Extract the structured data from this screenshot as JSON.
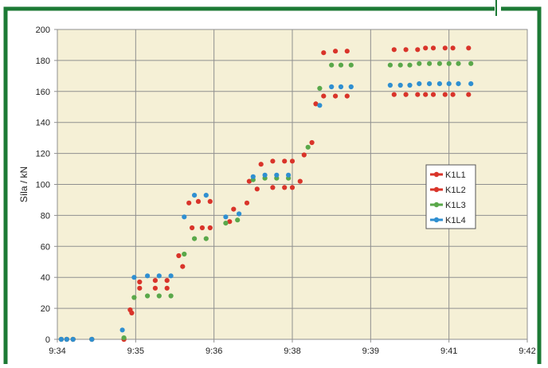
{
  "chart_data": {
    "type": "scatter",
    "title": "",
    "ylabel": "Síla / kN",
    "xlabel": "",
    "ylim": [
      0,
      200
    ],
    "y_ticks": [
      0,
      20,
      40,
      60,
      80,
      100,
      120,
      140,
      160,
      180,
      200
    ],
    "x_ticks": [
      "9:34",
      "9:35",
      "9:36",
      "9:38",
      "9:39",
      "9:41",
      "9:42"
    ],
    "x_unit": "minutes after 9:34",
    "grid": true,
    "legend_position": "right-middle",
    "plot_background": "#f5f0d6",
    "frame_color": "#1c7a35",
    "series": [
      {
        "name": "K1L1",
        "color": "#d9342a",
        "points": [
          [
            0.05,
            0
          ],
          [
            0.12,
            0
          ],
          [
            0.2,
            0
          ],
          [
            0.44,
            0
          ],
          [
            0.85,
            0
          ],
          [
            0.95,
            17
          ],
          [
            1.05,
            37
          ],
          [
            1.25,
            38
          ],
          [
            1.4,
            38
          ],
          [
            1.6,
            47
          ],
          [
            1.72,
            72
          ],
          [
            1.85,
            72
          ],
          [
            1.95,
            72
          ],
          [
            2.2,
            76
          ],
          [
            2.42,
            88
          ],
          [
            2.6,
            113
          ],
          [
            2.75,
            115
          ],
          [
            2.9,
            115
          ],
          [
            3.0,
            115
          ],
          [
            3.15,
            119
          ],
          [
            3.25,
            127
          ],
          [
            3.4,
            185
          ],
          [
            3.55,
            186
          ],
          [
            3.7,
            186
          ],
          [
            4.3,
            187
          ],
          [
            4.45,
            187
          ],
          [
            4.6,
            187
          ],
          [
            4.7,
            188
          ],
          [
            4.8,
            188
          ],
          [
            4.95,
            188
          ],
          [
            5.05,
            188
          ],
          [
            5.25,
            188
          ]
        ]
      },
      {
        "name": "K1L2",
        "color": "#d9342a",
        "points": [
          [
            0.05,
            0
          ],
          [
            0.12,
            0
          ],
          [
            0.2,
            0
          ],
          [
            0.44,
            0
          ],
          [
            0.85,
            0
          ],
          [
            0.93,
            19
          ],
          [
            1.05,
            33
          ],
          [
            1.25,
            33
          ],
          [
            1.4,
            33
          ],
          [
            1.55,
            54
          ],
          [
            1.68,
            88
          ],
          [
            1.8,
            89
          ],
          [
            1.95,
            89
          ],
          [
            2.25,
            84
          ],
          [
            2.45,
            102
          ],
          [
            2.55,
            97
          ],
          [
            2.75,
            98
          ],
          [
            2.9,
            98
          ],
          [
            3.0,
            98
          ],
          [
            3.1,
            102
          ],
          [
            3.3,
            152
          ],
          [
            3.4,
            157
          ],
          [
            3.55,
            157
          ],
          [
            3.7,
            157
          ],
          [
            4.3,
            158
          ],
          [
            4.45,
            158
          ],
          [
            4.6,
            158
          ],
          [
            4.7,
            158
          ],
          [
            4.8,
            158
          ],
          [
            4.95,
            158
          ],
          [
            5.05,
            158
          ],
          [
            5.25,
            158
          ]
        ]
      },
      {
        "name": "K1L3",
        "color": "#5aa84a",
        "points": [
          [
            0.05,
            0
          ],
          [
            0.12,
            0
          ],
          [
            0.2,
            0
          ],
          [
            0.44,
            0
          ],
          [
            0.85,
            1
          ],
          [
            0.98,
            27
          ],
          [
            1.15,
            28
          ],
          [
            1.3,
            28
          ],
          [
            1.45,
            28
          ],
          [
            1.62,
            55
          ],
          [
            1.75,
            65
          ],
          [
            1.9,
            65
          ],
          [
            2.15,
            75
          ],
          [
            2.3,
            77
          ],
          [
            2.5,
            103
          ],
          [
            2.65,
            104
          ],
          [
            2.8,
            104
          ],
          [
            2.95,
            104
          ],
          [
            3.2,
            124
          ],
          [
            3.35,
            162
          ],
          [
            3.5,
            177
          ],
          [
            3.62,
            177
          ],
          [
            3.75,
            177
          ],
          [
            4.25,
            177
          ],
          [
            4.38,
            177
          ],
          [
            4.5,
            177
          ],
          [
            4.62,
            178
          ],
          [
            4.75,
            178
          ],
          [
            4.88,
            178
          ],
          [
            5.0,
            178
          ],
          [
            5.12,
            178
          ],
          [
            5.28,
            178
          ]
        ]
      },
      {
        "name": "K1L4",
        "color": "#2f8fd1",
        "points": [
          [
            0.05,
            0
          ],
          [
            0.12,
            0
          ],
          [
            0.2,
            0
          ],
          [
            0.44,
            0
          ],
          [
            0.83,
            6
          ],
          [
            0.98,
            40
          ],
          [
            1.15,
            41
          ],
          [
            1.3,
            41
          ],
          [
            1.45,
            41
          ],
          [
            1.62,
            79
          ],
          [
            1.75,
            93
          ],
          [
            1.9,
            93
          ],
          [
            2.15,
            79
          ],
          [
            2.32,
            81
          ],
          [
            2.5,
            105
          ],
          [
            2.65,
            106
          ],
          [
            2.8,
            106
          ],
          [
            2.95,
            106
          ],
          [
            3.35,
            151
          ],
          [
            3.5,
            163
          ],
          [
            3.62,
            163
          ],
          [
            3.75,
            163
          ],
          [
            4.25,
            164
          ],
          [
            4.38,
            164
          ],
          [
            4.5,
            164
          ],
          [
            4.62,
            165
          ],
          [
            4.75,
            165
          ],
          [
            4.88,
            165
          ],
          [
            5.0,
            165
          ],
          [
            5.12,
            165
          ],
          [
            5.28,
            165
          ]
        ]
      }
    ]
  }
}
